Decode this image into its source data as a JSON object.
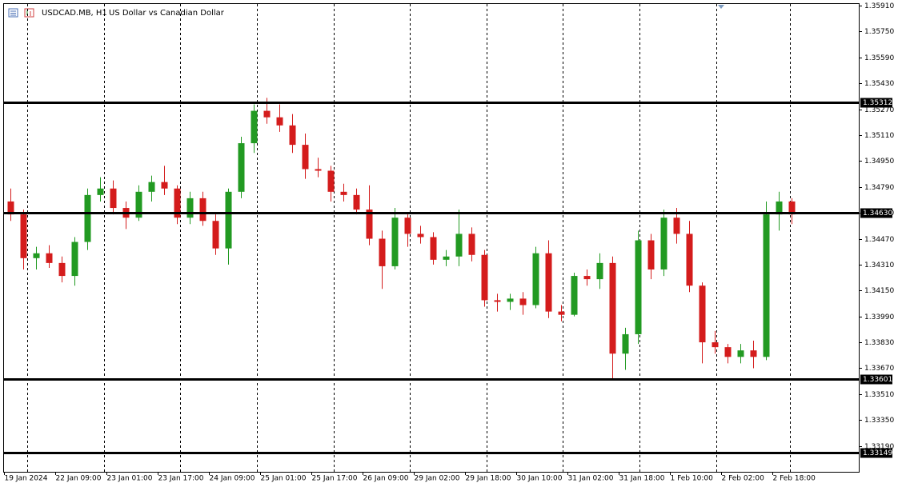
{
  "chart_data": {
    "type": "candlestick",
    "symbol": "USDCAD.MB, H1",
    "description": "US Dollar vs Canadian Dollar",
    "bull_color": "#229a22",
    "bear_color": "#d41c1c",
    "open": [
      1.347,
      1.3462,
      1.3435,
      1.3438,
      1.3432,
      1.3424,
      1.3445,
      1.3474,
      1.3478,
      1.3466,
      1.346,
      1.3476,
      1.3482,
      1.3478,
      1.346,
      1.3472,
      1.3458,
      1.3441,
      1.3476,
      1.3506,
      1.3526,
      1.3522,
      1.3517,
      1.3505,
      1.349,
      1.3489,
      1.3476,
      1.3474,
      1.3465,
      1.3447,
      1.343,
      1.346,
      1.345,
      1.3448,
      1.3434,
      1.3436,
      1.345,
      1.3437,
      1.3409,
      1.3408,
      1.341,
      1.3406,
      1.3438,
      1.3402,
      1.34,
      1.3424,
      1.3422,
      1.3432,
      1.3376,
      1.3388,
      1.3446,
      1.3428,
      1.346,
      1.345,
      1.3418,
      1.3383,
      1.338,
      1.3374,
      1.3378,
      1.3374,
      1.3462,
      1.347
    ],
    "high": [
      1.3478,
      1.3465,
      1.3442,
      1.3443,
      1.3436,
      1.3448,
      1.3478,
      1.3485,
      1.3483,
      1.347,
      1.348,
      1.3486,
      1.3492,
      1.348,
      1.3476,
      1.3476,
      1.3462,
      1.3478,
      1.351,
      1.353,
      1.3534,
      1.353,
      1.3524,
      1.3512,
      1.3497,
      1.3492,
      1.3481,
      1.3478,
      1.348,
      1.3452,
      1.3466,
      1.3462,
      1.3455,
      1.3451,
      1.344,
      1.3465,
      1.3454,
      1.344,
      1.3413,
      1.3413,
      1.3414,
      1.3442,
      1.3446,
      1.3406,
      1.3426,
      1.3428,
      1.3438,
      1.3436,
      1.3392,
      1.3452,
      1.345,
      1.3465,
      1.3466,
      1.3458,
      1.342,
      1.339,
      1.3382,
      1.3382,
      1.3384,
      1.347,
      1.3476,
      1.3472
    ],
    "low": [
      1.3458,
      1.3428,
      1.3428,
      1.3429,
      1.342,
      1.3418,
      1.344,
      1.347,
      1.3462,
      1.3453,
      1.3458,
      1.347,
      1.3474,
      1.3456,
      1.3456,
      1.3455,
      1.3437,
      1.3431,
      1.3472,
      1.35,
      1.3518,
      1.3513,
      1.35,
      1.3484,
      1.3485,
      1.347,
      1.347,
      1.3462,
      1.3443,
      1.3416,
      1.3428,
      1.3442,
      1.3444,
      1.3431,
      1.343,
      1.343,
      1.3433,
      1.3405,
      1.3402,
      1.3403,
      1.34,
      1.3404,
      1.3398,
      1.3396,
      1.3399,
      1.3418,
      1.3416,
      1.336,
      1.3366,
      1.3382,
      1.3422,
      1.3424,
      1.3444,
      1.3414,
      1.337,
      1.3376,
      1.337,
      1.337,
      1.3367,
      1.3372,
      1.3452,
      1.3456
    ],
    "close": [
      1.3462,
      1.3435,
      1.3438,
      1.3432,
      1.3424,
      1.3445,
      1.3474,
      1.3478,
      1.3466,
      1.346,
      1.3476,
      1.3482,
      1.3478,
      1.346,
      1.3472,
      1.3458,
      1.3441,
      1.3476,
      1.3506,
      1.3526,
      1.3522,
      1.3517,
      1.3505,
      1.349,
      1.3489,
      1.3476,
      1.3474,
      1.3465,
      1.3447,
      1.343,
      1.346,
      1.345,
      1.3448,
      1.3434,
      1.3436,
      1.345,
      1.3437,
      1.3409,
      1.3408,
      1.341,
      1.3406,
      1.3438,
      1.3402,
      1.34,
      1.3424,
      1.3422,
      1.3432,
      1.3376,
      1.3388,
      1.3446,
      1.3428,
      1.346,
      1.345,
      1.3418,
      1.3383,
      1.338,
      1.3374,
      1.3378,
      1.3374,
      1.3462,
      1.347,
      1.3462
    ],
    "xlim": [
      0,
      66.75
    ],
    "xticks": [
      {
        "value": 0,
        "label": "19 Jan 2024"
      },
      {
        "value": 4,
        "label": "22 Jan 09:00"
      },
      {
        "value": 8,
        "label": "23 Jan 01:00"
      },
      {
        "value": 12,
        "label": "23 Jan 17:00"
      },
      {
        "value": 16,
        "label": "24 Jan 09:00"
      },
      {
        "value": 20,
        "label": "25 Jan 01:00"
      },
      {
        "value": 24,
        "label": "25 Jan 17:00"
      },
      {
        "value": 28,
        "label": "26 Jan 09:00"
      },
      {
        "value": 32,
        "label": "29 Jan 02:00"
      },
      {
        "value": 36,
        "label": "29 Jan 18:00"
      },
      {
        "value": 40,
        "label": "30 Jan 10:00"
      },
      {
        "value": 44,
        "label": "31 Jan 02:00"
      },
      {
        "value": 48,
        "label": "31 Jan 18:00"
      },
      {
        "value": 52,
        "label": "1 Feb 10:00"
      },
      {
        "value": 56,
        "label": "2 Feb 02:00"
      },
      {
        "value": 60,
        "label": "2 Feb 18:00"
      }
    ],
    "separators": [
      1.8,
      7.8,
      13.75,
      19.75,
      25.75,
      31.7,
      37.7,
      43.6,
      49.6,
      55.6,
      61.4
    ],
    "ylim": [
      1.3303,
      1.3592
    ],
    "yticks": [
      {
        "value": 1.3591,
        "label": "1.35910"
      },
      {
        "value": 1.3575,
        "label": "1.35750"
      },
      {
        "value": 1.3559,
        "label": "1.35590"
      },
      {
        "value": 1.3543,
        "label": "1.35430"
      },
      {
        "value": 1.3527,
        "label": "1.35270"
      },
      {
        "value": 1.3511,
        "label": "1.35110"
      },
      {
        "value": 1.3495,
        "label": "1.34950"
      },
      {
        "value": 1.3479,
        "label": "1.34790"
      },
      {
        "value": 1.3463,
        "label": "1.34630"
      },
      {
        "value": 1.3447,
        "label": "1.34470"
      },
      {
        "value": 1.3431,
        "label": "1.34310"
      },
      {
        "value": 1.3415,
        "label": "1.34150"
      },
      {
        "value": 1.3399,
        "label": "1.33990"
      },
      {
        "value": 1.3383,
        "label": "1.33830"
      },
      {
        "value": 1.3367,
        "label": "1.33670"
      },
      {
        "value": 1.3351,
        "label": "1.33510"
      },
      {
        "value": 1.3335,
        "label": "1.33350"
      },
      {
        "value": 1.3319,
        "label": "1.33190"
      }
    ],
    "levels": [
      1.35312,
      {
        "value": 1.3463,
        "label": "1.34630"
      },
      1.33601,
      1.33149
    ]
  }
}
